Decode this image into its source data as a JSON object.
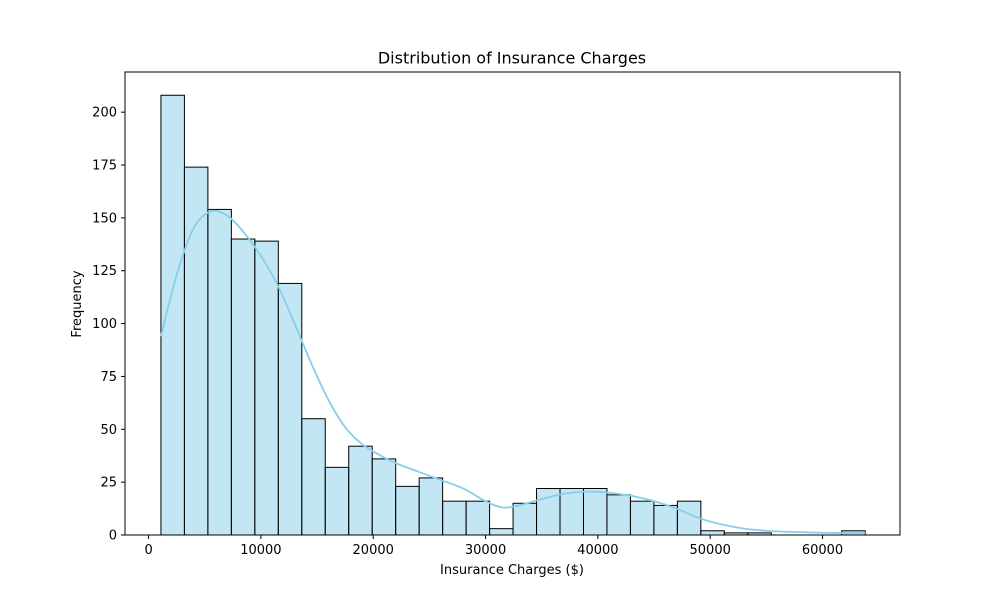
{
  "chart_data": {
    "type": "bar",
    "subtype": "histogram",
    "title": "Distribution of Insurance Charges",
    "xlabel": "Insurance Charges ($)",
    "ylabel": "Frequency",
    "xlim": [
      -2100,
      66900
    ],
    "ylim": [
      0,
      219
    ],
    "xticks": [
      0,
      10000,
      20000,
      30000,
      40000,
      50000,
      60000
    ],
    "xtick_labels": [
      "0",
      "10000",
      "20000",
      "30000",
      "40000",
      "50000",
      "60000"
    ],
    "yticks": [
      0,
      25,
      50,
      75,
      100,
      125,
      150,
      175,
      200
    ],
    "ytick_labels": [
      "0",
      "25",
      "50",
      "75",
      "100",
      "125",
      "150",
      "175",
      "200"
    ],
    "grid": false,
    "bin_edges": [
      1100,
      3190,
      5280,
      7370,
      9460,
      11550,
      13640,
      15730,
      17820,
      19910,
      22000,
      24090,
      26180,
      28270,
      30360,
      32450,
      34540,
      36630,
      38720,
      40810,
      42900,
      44990,
      47080,
      49170,
      51260,
      53350,
      55440,
      57530,
      59620,
      61710,
      63800
    ],
    "values": [
      208,
      174,
      154,
      140,
      139,
      119,
      55,
      32,
      42,
      36,
      23,
      27,
      16,
      16,
      3,
      15,
      22,
      22,
      22,
      19,
      16,
      14,
      16,
      2,
      1,
      1,
      0,
      0,
      0,
      2
    ],
    "bar_color": "#87ceeb",
    "bar_alpha": 0.5,
    "edge_color": "#000000",
    "kde": {
      "color": "#87ceeb",
      "x": [
        1100,
        2500,
        4000,
        5500,
        7000,
        8500,
        10000,
        11500,
        13000,
        14500,
        16000,
        17500,
        19000,
        20500,
        22000,
        24000,
        26000,
        28000,
        30000,
        31500,
        33000,
        35000,
        37000,
        39000,
        41000,
        43000,
        45000,
        47000,
        49000,
        51000,
        53000,
        55000,
        57000,
        59000,
        61000,
        63800
      ],
      "y": [
        94,
        123,
        145,
        153,
        151,
        143,
        132,
        118,
        100,
        81,
        64,
        51,
        43,
        38,
        34,
        30,
        26,
        22,
        16,
        13,
        14,
        17,
        19.5,
        20.5,
        20,
        18.5,
        16,
        12.5,
        8,
        5,
        3,
        2,
        1.5,
        1.2,
        1,
        1
      ]
    }
  }
}
